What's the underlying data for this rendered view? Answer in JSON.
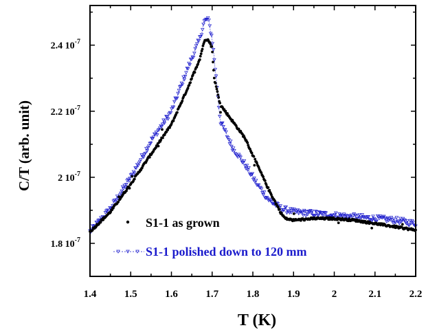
{
  "chart_data": {
    "type": "scatter",
    "xlabel": "T (K)",
    "ylabel": "C/T (arb. unit)",
    "xlim": [
      1.4,
      2.2
    ],
    "ylim": [
      1.7e-07,
      2.52e-07
    ],
    "xticks": [
      1.4,
      1.5,
      1.6,
      1.7,
      1.8,
      1.9,
      2.0,
      2.1,
      2.2
    ],
    "xtick_labels": [
      "1.4",
      "1.5",
      "1.6",
      "1.7",
      "1.8",
      "1.9",
      "2",
      "2.1",
      "2.2"
    ],
    "yticks": [
      1.8e-07,
      2e-07,
      2.2e-07,
      2.4e-07
    ],
    "ytick_labels": [
      "1.8 10",
      "2 10",
      "2.2 10",
      "2.4 10"
    ],
    "ytick_exponent": "-7",
    "grid": false,
    "legend_position": "bottom-left",
    "series": [
      {
        "name": "S1-1 as grown",
        "marker": "dot",
        "color": "#000000",
        "x": [
          1.4,
          1.45,
          1.5,
          1.55,
          1.6,
          1.64,
          1.67,
          1.68,
          1.69,
          1.7,
          1.705,
          1.72,
          1.75,
          1.78,
          1.81,
          1.84,
          1.87,
          1.88,
          1.9,
          1.95,
          2.0,
          2.05,
          2.1,
          2.15,
          2.2
        ],
        "y": [
          1.835e-07,
          1.895e-07,
          1.98e-07,
          2.07e-07,
          2.16e-07,
          2.27e-07,
          2.36e-07,
          2.41e-07,
          2.42e-07,
          2.39e-07,
          2.3e-07,
          2.22e-07,
          2.17e-07,
          2.12e-07,
          2.04e-07,
          1.96e-07,
          1.89e-07,
          1.875e-07,
          1.87e-07,
          1.875e-07,
          1.875e-07,
          1.87e-07,
          1.86e-07,
          1.85e-07,
          1.84e-07
        ]
      },
      {
        "name": "S1-1 polished down to 120 mm",
        "marker": "triangle-down",
        "color": "#1a1acc",
        "x": [
          1.4,
          1.45,
          1.5,
          1.55,
          1.6,
          1.64,
          1.67,
          1.68,
          1.69,
          1.7,
          1.71,
          1.72,
          1.75,
          1.78,
          1.81,
          1.84,
          1.87,
          1.9,
          1.95,
          2.0,
          2.05,
          2.1,
          2.15,
          2.2
        ],
        "y": [
          1.835e-07,
          1.905e-07,
          2e-07,
          2.11e-07,
          2.2e-07,
          2.33e-07,
          2.42e-07,
          2.47e-07,
          2.48e-07,
          2.42e-07,
          2.3e-07,
          2.17e-07,
          2.09e-07,
          2.04e-07,
          1.98e-07,
          1.93e-07,
          1.905e-07,
          1.895e-07,
          1.89e-07,
          1.885e-07,
          1.88e-07,
          1.875e-07,
          1.87e-07,
          1.86e-07
        ]
      }
    ]
  }
}
